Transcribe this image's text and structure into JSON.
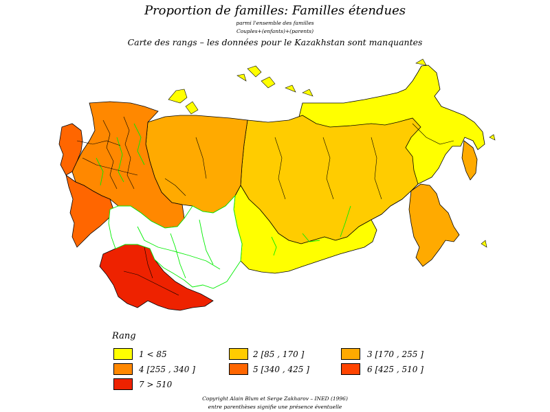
{
  "title": "Proportion de familles: Familles étendues",
  "subtitle1": "parmi l'ensemble des familles",
  "subtitle2": "Couples+(enfants)+(parents)",
  "subtitle3": "Carte des rangs – les données pour le Kazakhstan sont manquantes",
  "legend": {
    "title": "Rang",
    "items": [
      {
        "label": "1  <  85",
        "color": "#ffff00"
      },
      {
        "label": "2  [85 ,  170 ]",
        "color": "#ffcc00"
      },
      {
        "label": "3  [170 ,  255 ]",
        "color": "#ffaa00"
      },
      {
        "label": "4  [255 ,  340 ]",
        "color": "#ff8800"
      },
      {
        "label": "5  [340 ,  425 ]",
        "color": "#ff6600"
      },
      {
        "label": "6  [425 ,  510 ]",
        "color": "#ff4400"
      },
      {
        "label": "7  >  510",
        "color": "#ee2200"
      }
    ]
  },
  "footer1": "Copyright  Alain  Blum  et  Serge  Zakharov  –  INED  (1996)",
  "footer2": "entre parenthèses signifie une présence éventuelle",
  "colors": {
    "missing": "#ffffff",
    "boundary": "#00ee00",
    "outline": "#000000"
  }
}
